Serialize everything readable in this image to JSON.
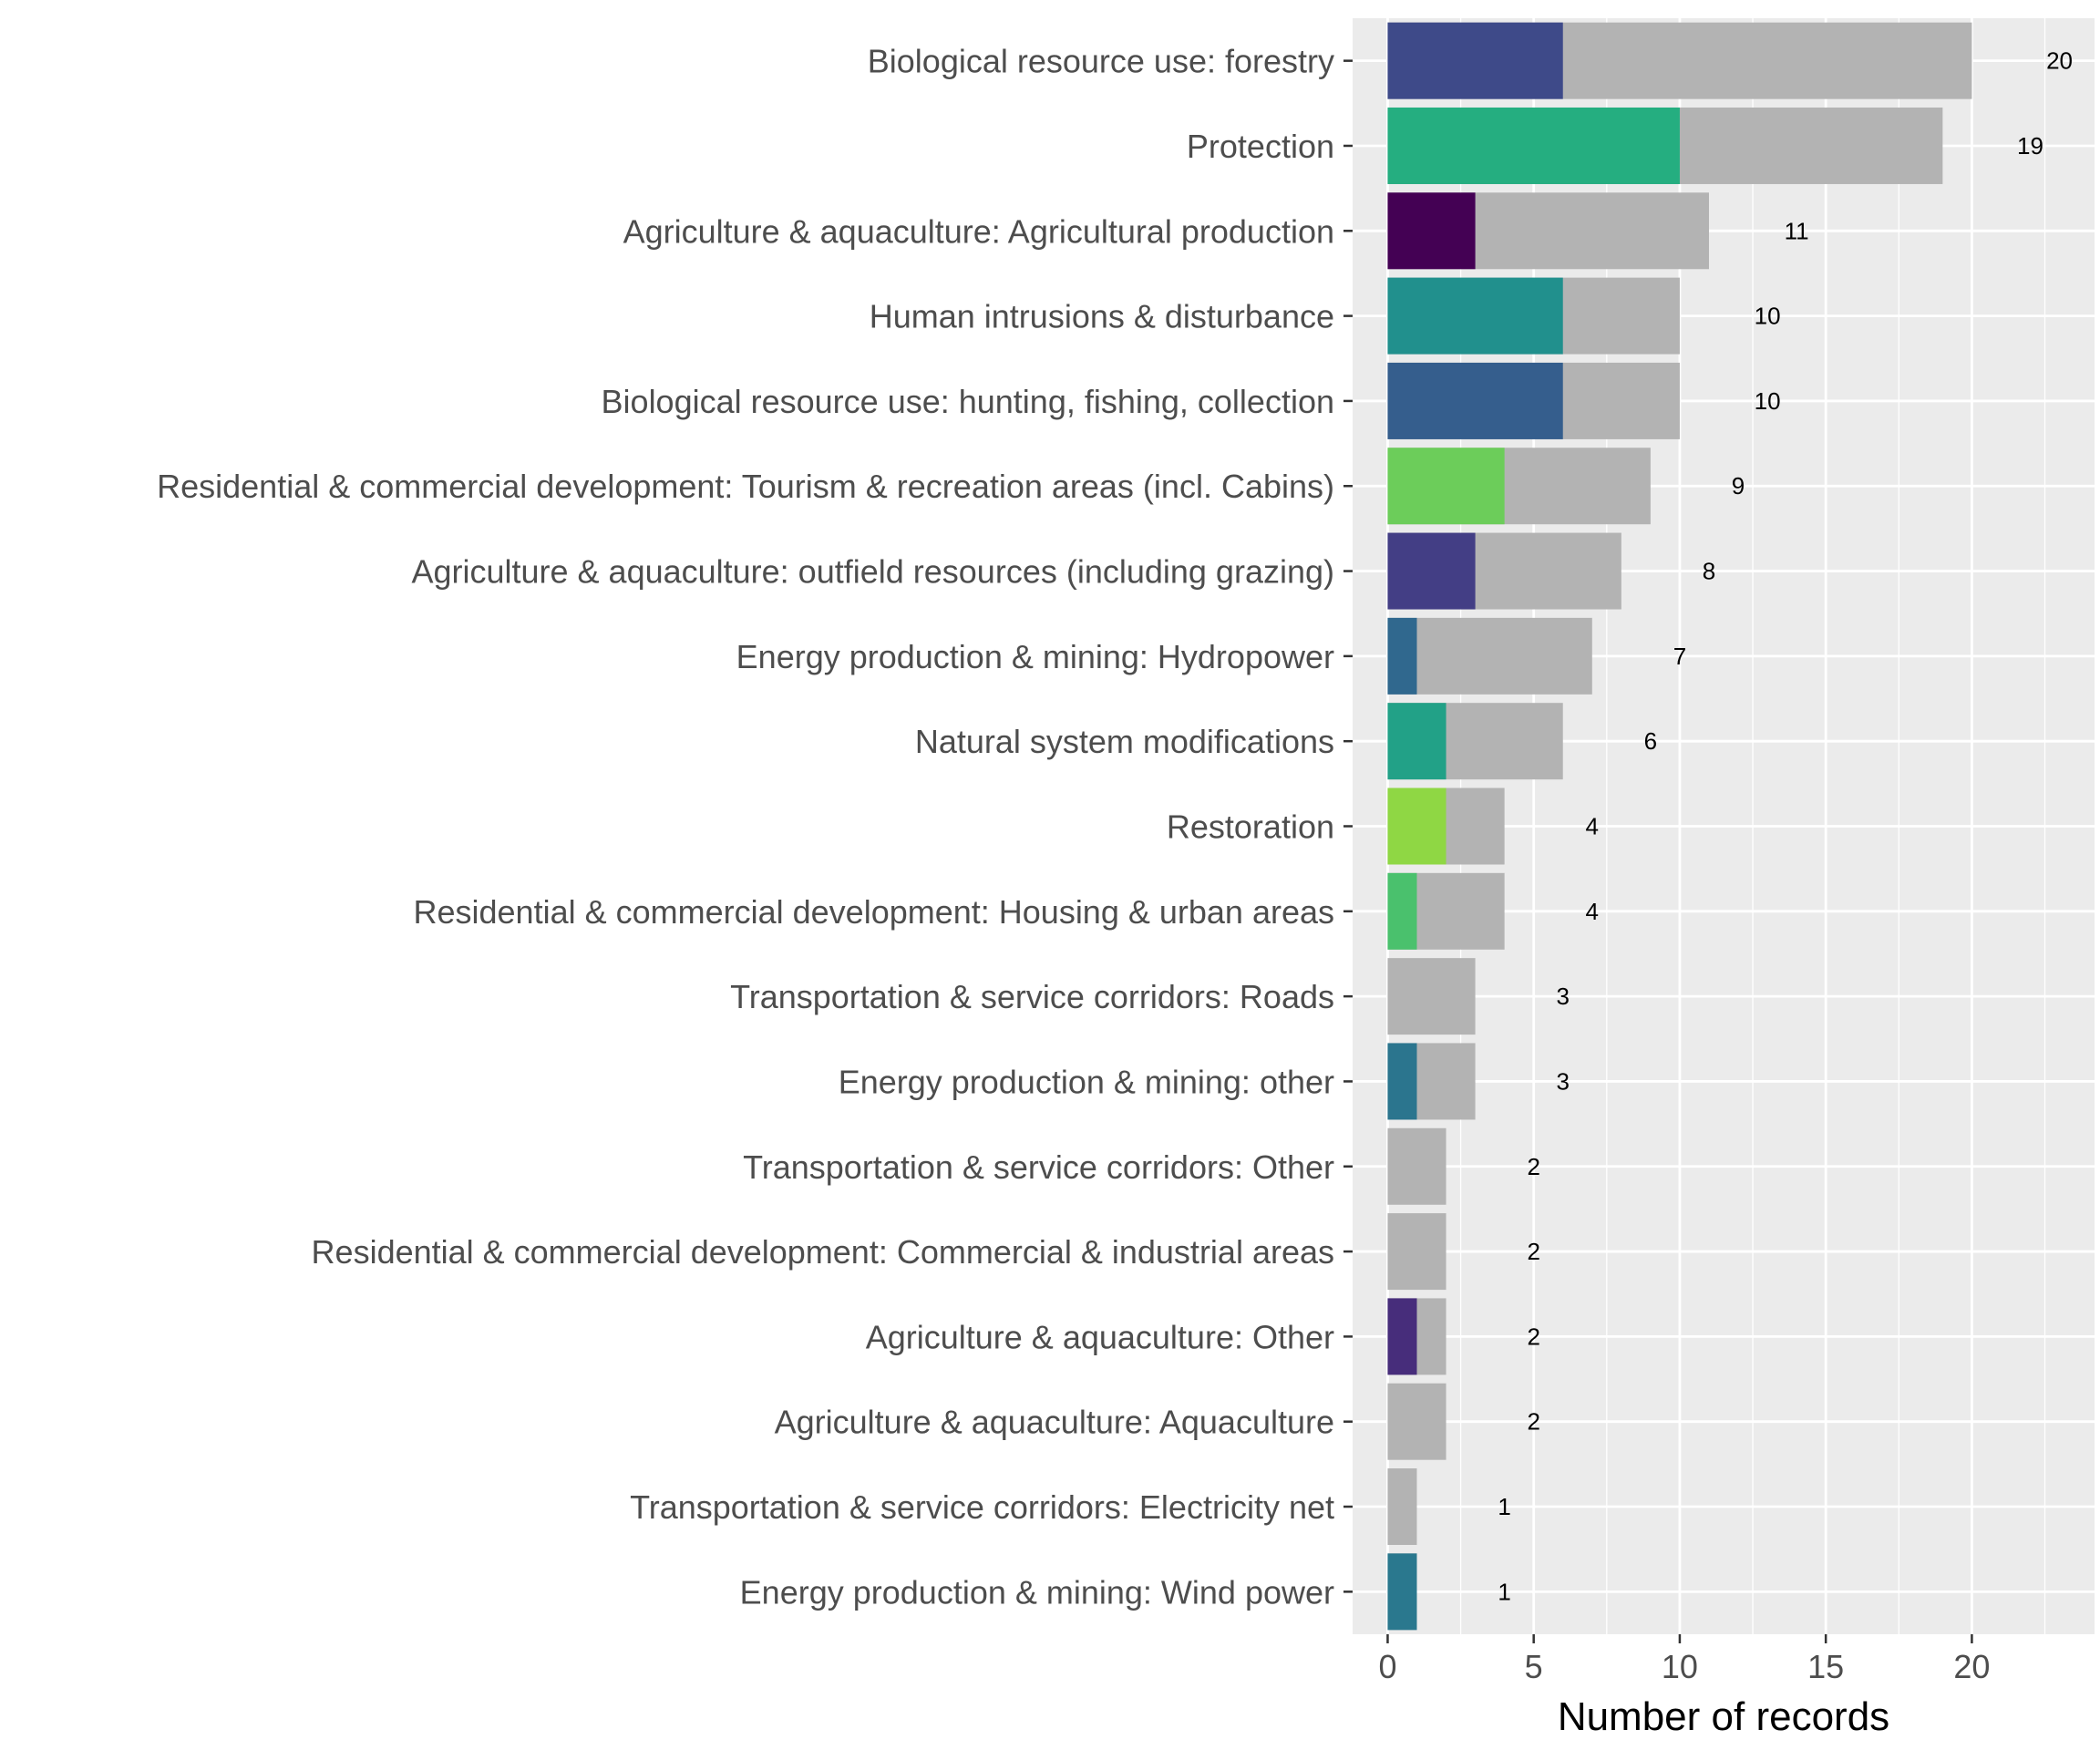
{
  "chart_data": {
    "type": "bar",
    "orientation": "horizontal",
    "stacked": true,
    "xlabel": "Number of records",
    "ylabel": "",
    "xlim": [
      -1.2,
      24.2
    ],
    "xticks": [
      0,
      5,
      10,
      15,
      20
    ],
    "grid": true,
    "colors": {
      "panel_bg": "#ebebeb",
      "grid": "#ffffff",
      "total_bar": "#b3b3b3",
      "label_text": "#4d4d4d"
    },
    "categories": [
      "Biological resource use: forestry",
      "Protection",
      "Agriculture & aquaculture: Agricultural production",
      "Human intrusions & disturbance",
      "Biological resource use: hunting, fishing, collection",
      "Residential & commercial development: Tourism & recreation areas (incl. Cabins)",
      "Agriculture & aquaculture: outfield resources (including grazing)",
      "Energy production & mining: Hydropower",
      "Natural system modifications",
      "Restoration",
      "Residential & commercial development: Housing & urban areas",
      "Transportation & service corridors: Roads",
      "Energy production & mining: other",
      "Transportation & service corridors: Other",
      "Residential & commercial development: Commercial & industrial areas",
      "Agriculture & aquaculture: Other",
      "Agriculture & aquaculture: Aquaculture",
      "Transportation & service corridors: Electricity net",
      "Energy production & mining: Wind power"
    ],
    "totals": [
      20,
      19,
      11,
      10,
      10,
      9,
      8,
      7,
      6,
      4,
      4,
      3,
      3,
      2,
      2,
      2,
      2,
      1,
      1
    ],
    "highlighted": [
      6,
      10,
      3,
      6,
      6,
      4,
      3,
      1,
      2,
      2,
      1,
      0,
      1,
      0,
      0,
      1,
      0,
      0,
      1
    ],
    "highlight_colors": [
      "#3e4a89",
      "#25ae80",
      "#440154",
      "#21908d",
      "#355e8d",
      "#6ccd5a",
      "#433e85",
      "#30688e",
      "#22a187",
      "#8fd744",
      "#4ac16d",
      "#b3b3b3",
      "#2b758e",
      "#b3b3b3",
      "#b3b3b3",
      "#472d7b",
      "#b3b3b3",
      "#b3b3b3",
      "#2a788e"
    ],
    "data_labels": [
      "20",
      "19",
      "11",
      "10",
      "10",
      "9",
      "8",
      "7",
      "6",
      "4",
      "4",
      "3",
      "3",
      "2",
      "2",
      "2",
      "2",
      "1",
      "1"
    ]
  }
}
